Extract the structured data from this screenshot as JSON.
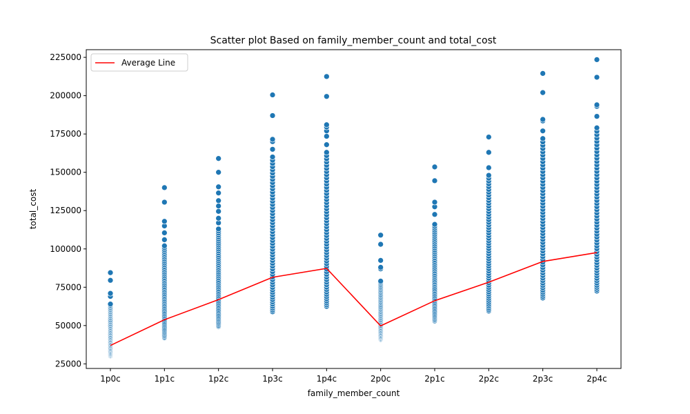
{
  "chart_data": {
    "type": "scatter",
    "title": "Scatter plot Based on family_member_count and total_cost",
    "xlabel": "family_member_count",
    "ylabel": "total_cost",
    "categories": [
      "1p0c",
      "1p1c",
      "1p2c",
      "1p3c",
      "1p4c",
      "2p0c",
      "2p1c",
      "2p2c",
      "2p3c",
      "2p4c"
    ],
    "ylim": [
      22000,
      230000
    ],
    "yticks": [
      25000,
      50000,
      75000,
      100000,
      125000,
      150000,
      175000,
      200000,
      225000
    ],
    "scatter_color": "#1f77b4",
    "line_color": "#ff0000",
    "legend": {
      "position": "upper-left",
      "entries": [
        {
          "label": "Average Line",
          "color": "#ff0000"
        }
      ]
    },
    "points": [
      {
        "category": "1p0c",
        "min": 30000,
        "max": 64000,
        "outliers": [
          69000,
          71000,
          79500,
          84500
        ]
      },
      {
        "category": "1p1c",
        "min": 42000,
        "max": 102000,
        "outliers": [
          106000,
          110500,
          115000,
          118000,
          130500,
          140000
        ]
      },
      {
        "category": "1p2c",
        "min": 49500,
        "max": 113000,
        "outliers": [
          117000,
          120000,
          124500,
          128000,
          131500,
          136500,
          140500,
          150000,
          159000
        ]
      },
      {
        "category": "1p3c",
        "min": 59000,
        "max": 160000,
        "outliers": [
          165000,
          170000,
          171500,
          187000,
          200500
        ]
      },
      {
        "category": "1p4c",
        "min": 62500,
        "max": 163000,
        "outliers": [
          168000,
          173500,
          177000,
          179500,
          181000,
          199500,
          212500
        ]
      },
      {
        "category": "2p0c",
        "min": 41000,
        "max": 79000,
        "outliers": [
          87000,
          88000,
          92500,
          103000,
          109000
        ]
      },
      {
        "category": "2p1c",
        "min": 53000,
        "max": 116000,
        "outliers": [
          122500,
          127500,
          130500,
          144500,
          153500
        ]
      },
      {
        "category": "2p2c",
        "min": 59500,
        "max": 148000,
        "outliers": [
          153000,
          163000,
          173000
        ]
      },
      {
        "category": "2p3c",
        "min": 68000,
        "max": 172000,
        "outliers": [
          177000,
          183500,
          184500,
          202000,
          214500
        ]
      },
      {
        "category": "2p4c",
        "min": 72500,
        "max": 179000,
        "outliers": [
          186500,
          193000,
          194000,
          212000,
          223500
        ]
      }
    ],
    "series": [
      {
        "name": "Average Line",
        "type": "line",
        "values": [
          37000,
          53800,
          66900,
          81500,
          87300,
          49800,
          66200,
          78300,
          91800,
          97600
        ]
      }
    ]
  }
}
